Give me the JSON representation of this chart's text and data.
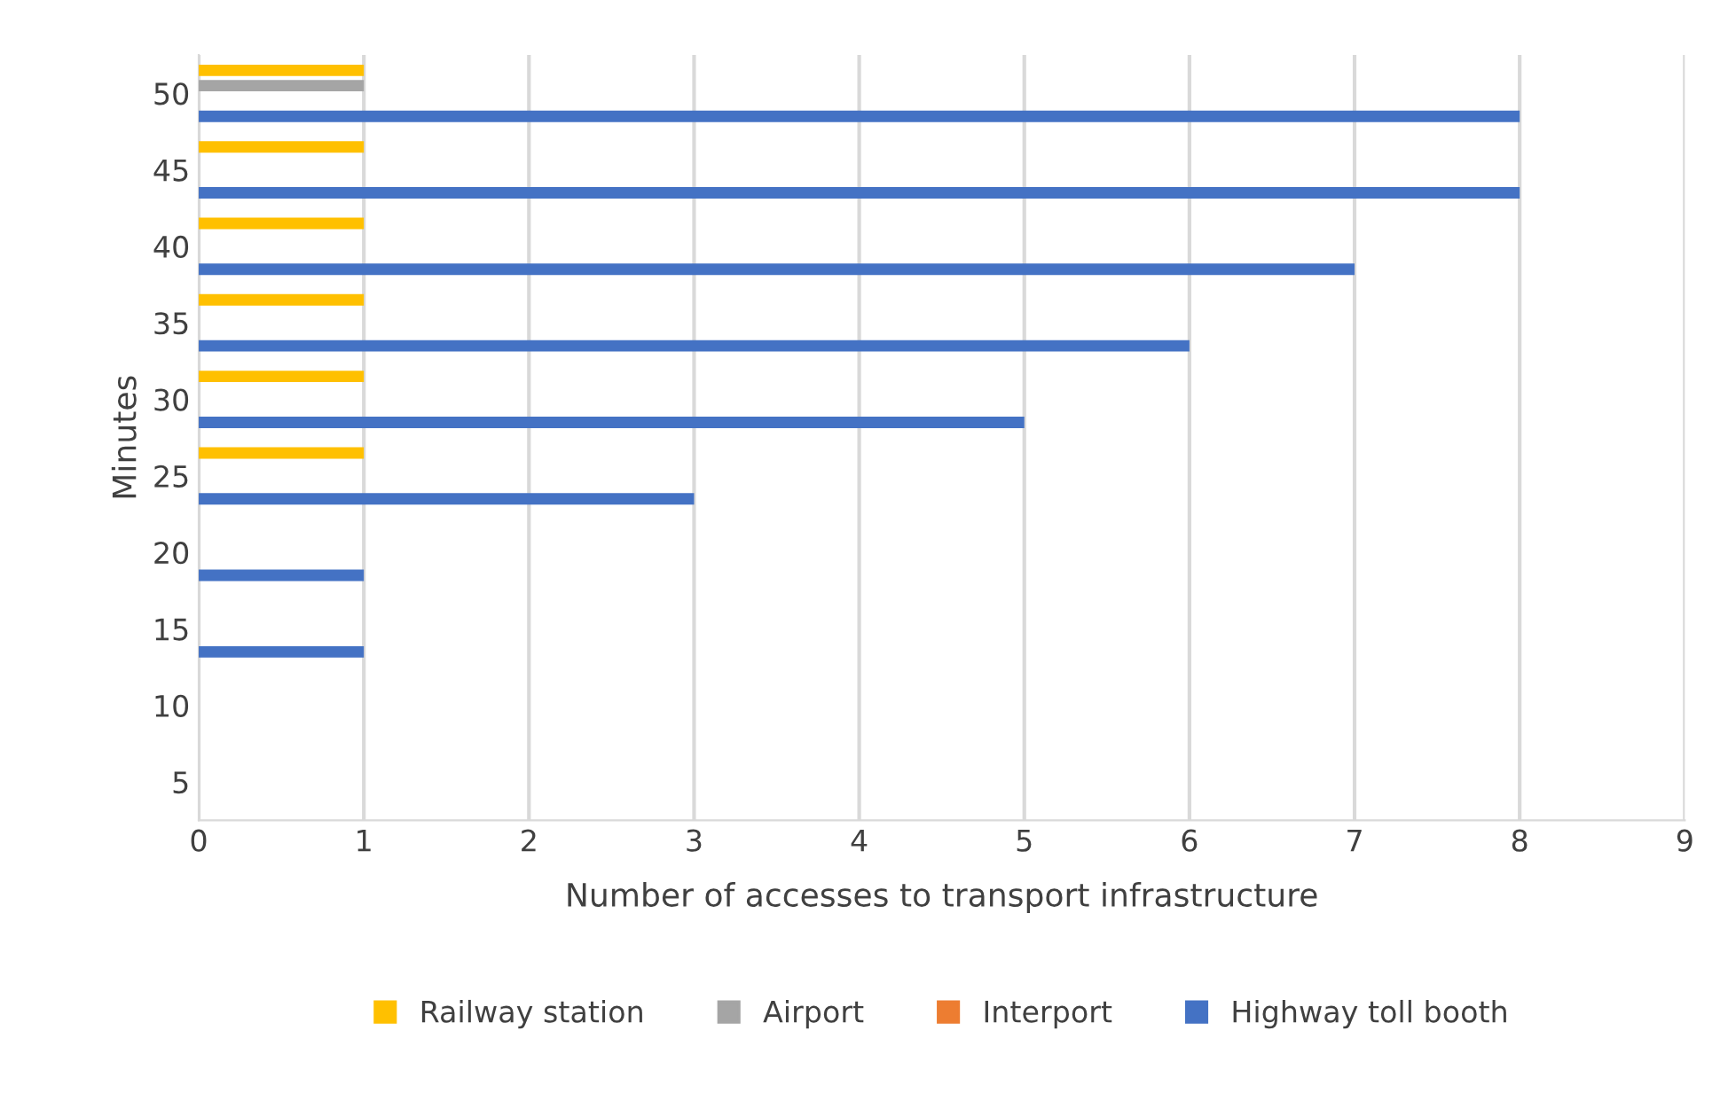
{
  "chart_data": {
    "type": "bar",
    "orientation": "horizontal",
    "xlabel": "Number of accesses to transport infrastructure",
    "ylabel": "Minutes",
    "categories": [
      "50",
      "45",
      "40",
      "35",
      "30",
      "25",
      "20",
      "15",
      "10",
      "5"
    ],
    "series": [
      {
        "name": "Railway station",
        "color": "#ffc000",
        "values": [
          1,
          1,
          1,
          1,
          1,
          1,
          null,
          null,
          null,
          null
        ]
      },
      {
        "name": "Airport",
        "color": "#a5a5a5",
        "values": [
          1,
          null,
          null,
          null,
          null,
          null,
          null,
          null,
          null,
          null
        ]
      },
      {
        "name": "Interport",
        "color": "#ed7d31",
        "values": [
          null,
          null,
          null,
          null,
          null,
          null,
          null,
          null,
          null,
          null
        ]
      },
      {
        "name": "Highway toll booth",
        "color": "#4472c4",
        "values": [
          8,
          8,
          7,
          6,
          5,
          3,
          1,
          1,
          null,
          null
        ]
      }
    ],
    "xlim": [
      0,
      9
    ],
    "xticks": [
      0,
      1,
      2,
      3,
      4,
      5,
      6,
      7,
      8,
      9
    ],
    "grid": "x",
    "legend": "bottom"
  }
}
